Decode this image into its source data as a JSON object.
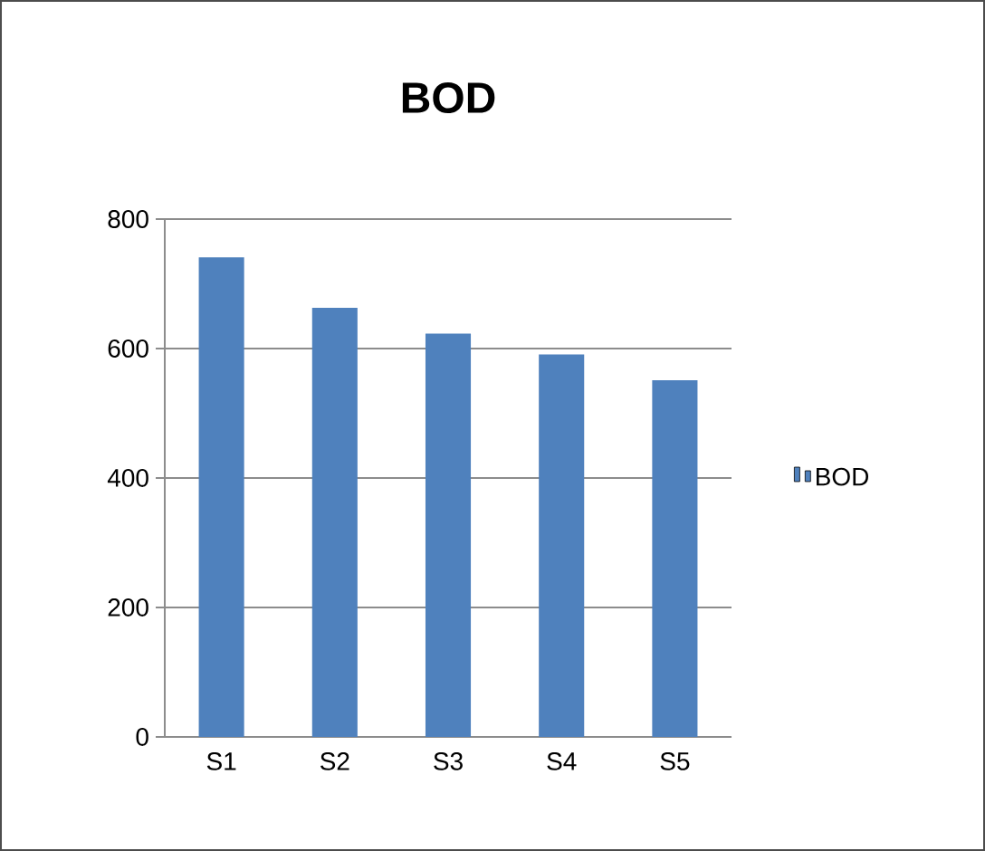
{
  "chart_data": {
    "type": "bar",
    "title": "BOD",
    "categories": [
      "S1",
      "S2",
      "S3",
      "S4",
      "S5"
    ],
    "series": [
      {
        "name": "BOD",
        "color": "#4f81bd",
        "values": [
          741,
          663,
          623,
          591,
          551
        ]
      }
    ],
    "ylim": [
      0,
      800
    ],
    "yticks": [
      0,
      200,
      400,
      600,
      800
    ],
    "grid": "y",
    "legend": "right"
  }
}
